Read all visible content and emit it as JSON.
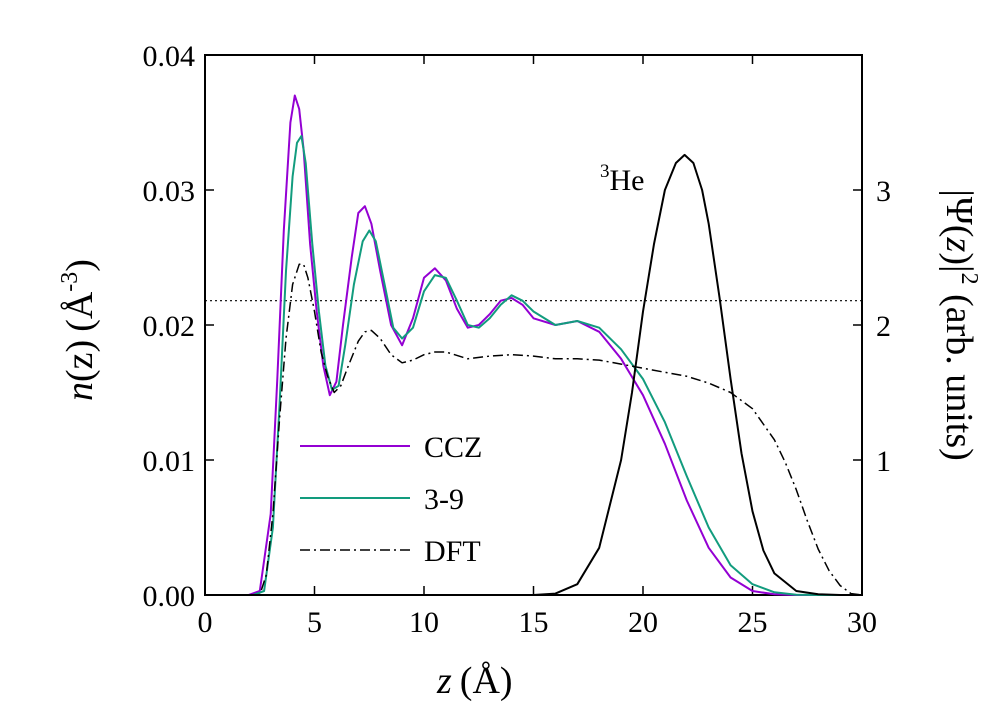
{
  "chart_data": {
    "type": "line",
    "title": "",
    "xlabel": {
      "var": "z",
      "unit_open": "(",
      "unit": "Å",
      "unit_close": ")"
    },
    "ylabel_left": {
      "var": "n",
      "arg": "(z)",
      "unit": "(Å",
      "exp": "-3",
      "close": ")"
    },
    "ylabel_right": {
      "prefix": "|Ψ(",
      "var": "z",
      "mid": ")|",
      "exp": "2",
      "suffix": " (arb. units)"
    },
    "xlim": [
      0,
      30
    ],
    "ylim_left": [
      0,
      0.04
    ],
    "ylim_right": [
      0,
      4.0
    ],
    "xticks": [
      0,
      5,
      10,
      15,
      20,
      25,
      30
    ],
    "xtick_labels": [
      "0",
      "5",
      "10",
      "15",
      "20",
      "25",
      "30"
    ],
    "yticks_left": [
      0,
      0.01,
      0.02,
      0.03,
      0.04
    ],
    "ytick_labels_left": [
      "0.00",
      "0.01",
      "0.02",
      "0.03",
      "0.04"
    ],
    "yticks_right": [
      1,
      2,
      3
    ],
    "ytick_labels_right": [
      "1",
      "2",
      "3"
    ],
    "legend": {
      "position": "lower-left",
      "entries": [
        "CCZ",
        "3-9",
        "DFT"
      ]
    },
    "annotation": {
      "sup": "3",
      "text": "He",
      "at_x": 19.6,
      "at_y_right": 3.02
    },
    "reference_line": {
      "y": 0.0218,
      "style": "dotted"
    },
    "series": [
      {
        "name": "CCZ",
        "color": "#9400d3",
        "style": "solid",
        "axis": "left",
        "x": [
          0,
          2.0,
          2.5,
          3.0,
          3.3,
          3.6,
          3.9,
          4.1,
          4.3,
          4.5,
          4.8,
          5.1,
          5.4,
          5.7,
          6.0,
          6.3,
          6.7,
          7.0,
          7.3,
          7.6,
          8.0,
          8.5,
          9.0,
          9.5,
          10.0,
          10.5,
          11.0,
          11.5,
          12.0,
          12.5,
          13.0,
          13.5,
          14.0,
          14.5,
          15.0,
          16.0,
          17.0,
          18.0,
          19.0,
          20.0,
          21.0,
          22.0,
          23.0,
          24.0,
          25.0,
          26.0,
          27.0,
          28.0,
          29.0,
          30.0
        ],
        "y": [
          0,
          0,
          0.0003,
          0.006,
          0.016,
          0.027,
          0.035,
          0.037,
          0.036,
          0.033,
          0.026,
          0.021,
          0.017,
          0.0148,
          0.0158,
          0.02,
          0.025,
          0.0283,
          0.0288,
          0.0275,
          0.024,
          0.02,
          0.0185,
          0.0205,
          0.0235,
          0.0242,
          0.0233,
          0.0212,
          0.0198,
          0.02,
          0.0208,
          0.0218,
          0.022,
          0.0215,
          0.0205,
          0.02,
          0.0203,
          0.0195,
          0.0175,
          0.0148,
          0.0112,
          0.007,
          0.0035,
          0.0013,
          0.0003,
          5e-05,
          0,
          0,
          0,
          0
        ]
      },
      {
        "name": "3-9",
        "color": "#129c7e",
        "style": "solid",
        "axis": "left",
        "x": [
          0,
          2.2,
          2.7,
          3.1,
          3.4,
          3.7,
          4.0,
          4.2,
          4.4,
          4.6,
          4.9,
          5.2,
          5.5,
          5.8,
          6.1,
          6.4,
          6.8,
          7.2,
          7.5,
          7.8,
          8.2,
          8.6,
          9.0,
          9.5,
          10.0,
          10.5,
          11.0,
          11.5,
          12.0,
          12.5,
          13.0,
          13.5,
          14.0,
          14.5,
          15.0,
          16.0,
          17.0,
          18.0,
          19.0,
          20.0,
          21.0,
          22.0,
          23.0,
          24.0,
          25.0,
          26.0,
          27.0,
          28.0,
          29.0,
          30.0
        ],
        "y": [
          0,
          0,
          0.0003,
          0.005,
          0.014,
          0.024,
          0.031,
          0.0335,
          0.034,
          0.032,
          0.026,
          0.021,
          0.017,
          0.0152,
          0.0155,
          0.0185,
          0.023,
          0.0262,
          0.027,
          0.0262,
          0.023,
          0.0198,
          0.019,
          0.0198,
          0.0225,
          0.0237,
          0.0235,
          0.0218,
          0.02,
          0.0198,
          0.0205,
          0.0215,
          0.0222,
          0.0218,
          0.021,
          0.02,
          0.0203,
          0.0198,
          0.0182,
          0.016,
          0.0128,
          0.0088,
          0.005,
          0.0022,
          0.0008,
          0.0002,
          2e-05,
          0,
          0,
          0
        ]
      },
      {
        "name": "DFT",
        "color": "#000000",
        "style": "dashdot",
        "axis": "left",
        "x": [
          0,
          2.5,
          2.8,
          3.1,
          3.4,
          3.7,
          4.0,
          4.3,
          4.5,
          4.7,
          5.0,
          5.3,
          5.6,
          5.9,
          6.2,
          6.5,
          7.0,
          7.3,
          7.6,
          8.0,
          8.5,
          9.0,
          9.5,
          10.0,
          10.5,
          11.0,
          12.0,
          13.0,
          14.0,
          15.0,
          16.0,
          17.0,
          18.0,
          19.0,
          20.0,
          21.0,
          22.0,
          23.0,
          24.0,
          25.0,
          26.0,
          26.5,
          27.0,
          27.5,
          28.0,
          28.5,
          29.0,
          29.5,
          30.0
        ],
        "y": [
          0,
          0,
          0.0015,
          0.006,
          0.013,
          0.019,
          0.023,
          0.0245,
          0.0245,
          0.0235,
          0.021,
          0.018,
          0.0162,
          0.015,
          0.0155,
          0.0168,
          0.0188,
          0.0195,
          0.0196,
          0.019,
          0.0178,
          0.0172,
          0.0174,
          0.0178,
          0.018,
          0.018,
          0.0175,
          0.0177,
          0.0178,
          0.0177,
          0.0175,
          0.0175,
          0.0174,
          0.0171,
          0.0168,
          0.0165,
          0.0162,
          0.0157,
          0.015,
          0.0138,
          0.0115,
          0.0098,
          0.0078,
          0.0055,
          0.0034,
          0.0018,
          0.0007,
          0.0001,
          0
        ]
      },
      {
        "name": "3He",
        "color": "#000000",
        "style": "solid",
        "axis": "right",
        "x": [
          0,
          15.0,
          16.0,
          17.0,
          18.0,
          19.0,
          19.5,
          20.0,
          20.5,
          21.0,
          21.5,
          21.9,
          22.3,
          22.7,
          23.0,
          23.5,
          24.0,
          24.5,
          25.0,
          25.5,
          26.0,
          27.0,
          28.0,
          29.0,
          30.0
        ],
        "y": [
          0,
          0,
          0.01,
          0.08,
          0.35,
          1.0,
          1.5,
          2.1,
          2.6,
          3.0,
          3.2,
          3.26,
          3.2,
          3.0,
          2.75,
          2.2,
          1.6,
          1.05,
          0.62,
          0.33,
          0.16,
          0.03,
          0.005,
          0,
          0
        ]
      }
    ]
  }
}
